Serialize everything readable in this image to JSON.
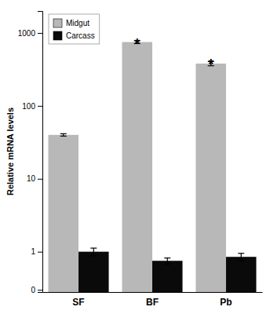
{
  "chart_data": {
    "type": "bar",
    "categories": [
      "SF",
      "BF",
      "Pb"
    ],
    "series": [
      {
        "name": "Midgut",
        "color": "#b8b8b8",
        "values": [
          40,
          750,
          380
        ],
        "errors": [
          1.5,
          35,
          25
        ]
      },
      {
        "name": "Carcass",
        "color": "#0a0a0a",
        "values": [
          1.0,
          0.75,
          0.85
        ],
        "errors": [
          0.12,
          0.07,
          0.1
        ]
      }
    ],
    "y_label": "Relative mRNA levels",
    "log": "y",
    "ylim": [
      0.28,
      2000
    ],
    "yticks": [
      {
        "value": 0.3,
        "label": "0"
      },
      1,
      10,
      100,
      1000
    ],
    "annotations": [
      {
        "text": "*",
        "category": "BF",
        "series": "Midgut"
      },
      {
        "text": "*",
        "category": "Pb",
        "series": "Midgut"
      }
    ],
    "legend": "upper left",
    "grid": false
  }
}
